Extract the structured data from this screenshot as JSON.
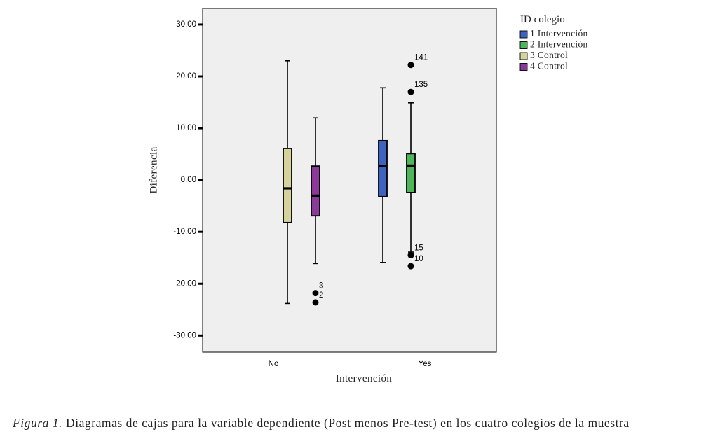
{
  "figure": {
    "caption_label": "Figura 1.",
    "caption_text": "Diagramas de cajas para la variable dependiente (Post menos Pre-test) en los cuatro colegios de la muestra"
  },
  "colors": {
    "plot_background": "#efefef"
  },
  "chart_data": {
    "type": "box",
    "xlabel": "Intervención",
    "ylabel": "Diferencia",
    "categories": [
      "No",
      "Yes"
    ],
    "ylim": [
      -33.2,
      33.1
    ],
    "yticks": [
      30,
      20,
      10,
      0,
      -10,
      -20,
      -30
    ],
    "ytick_labels": [
      "30.00",
      "20.00",
      "10.00",
      "0.00",
      "-10.00",
      "-20.00",
      "-30.00"
    ],
    "grid": false,
    "legend": {
      "title": "ID colegio",
      "position": "right"
    },
    "series": [
      {
        "name": "1 Intervención",
        "color": "#3e62c0",
        "boxes": [
          null,
          {
            "min": -15.9,
            "q1": -3.2,
            "median": 2.7,
            "q3": 7.6,
            "max": 17.8,
            "outliers": []
          }
        ]
      },
      {
        "name": "2 Intervención",
        "color": "#4fb55a",
        "boxes": [
          null,
          {
            "min": -13.9,
            "q1": -2.4,
            "median": 2.8,
            "q3": 5.1,
            "max": 14.9,
            "outliers": [
              {
                "label": "141",
                "value": 22.2
              },
              {
                "label": "135",
                "value": 17.0
              },
              {
                "label": "15",
                "value": -14.5
              },
              {
                "label": "10",
                "value": -16.6
              }
            ]
          }
        ]
      },
      {
        "name": "3 Control",
        "color": "#d6d29c",
        "boxes": [
          {
            "min": -23.8,
            "q1": -8.2,
            "median": -1.6,
            "q3": 6.1,
            "max": 23.0,
            "outliers": []
          },
          null
        ]
      },
      {
        "name": "4 Control",
        "color": "#8b3a99",
        "boxes": [
          {
            "min": -16.1,
            "q1": -6.9,
            "median": -3.0,
            "q3": 2.7,
            "max": 12.0,
            "outliers": [
              {
                "label": "3",
                "value": -21.8
              },
              {
                "label": "2",
                "value": -23.6
              }
            ]
          },
          null
        ]
      }
    ]
  }
}
